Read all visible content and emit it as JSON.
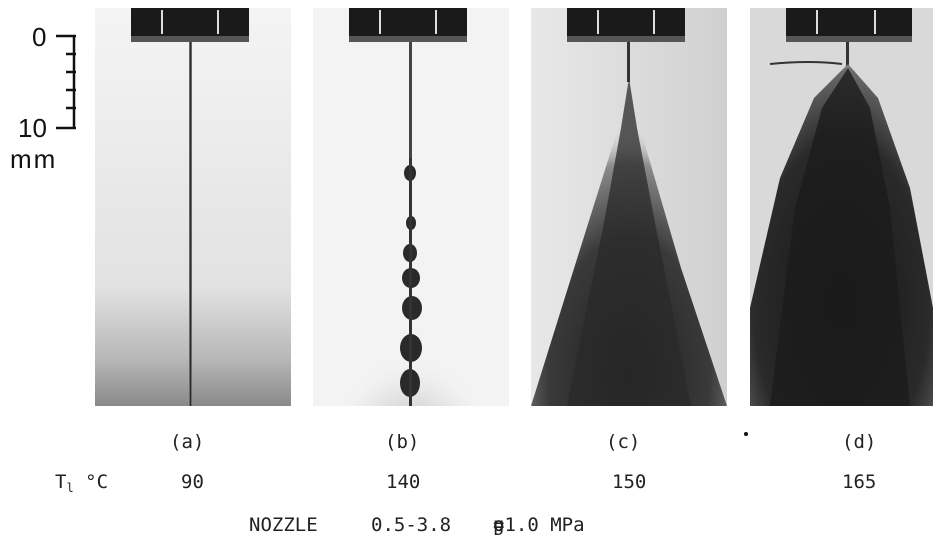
{
  "scale": {
    "zero_label": "0",
    "ten_label": "10",
    "unit_label": "mm"
  },
  "panels": [
    {
      "letter": "(a)",
      "temperature": "90"
    },
    {
      "letter": "(b)",
      "temperature": "140"
    },
    {
      "letter": "(c)",
      "temperature": "150"
    },
    {
      "letter": "(d)",
      "temperature": "165"
    }
  ],
  "temp_row_label": {
    "symbol": "T",
    "subscript": "l",
    "unit": "°C"
  },
  "footer": {
    "nozzle_label": "NOZZLE",
    "nozzle_value": "0.5-3.8",
    "pressure_symbol": "p",
    "pressure_subscript": "g",
    "pressure_value": "=1.0 MPa"
  }
}
